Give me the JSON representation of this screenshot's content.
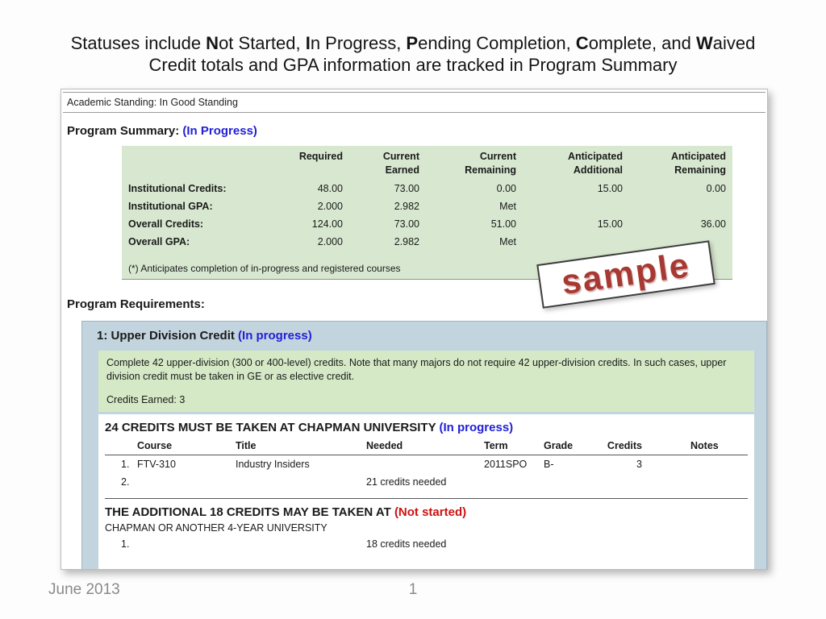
{
  "colors": {
    "status_blue": "#2121d6",
    "status_red": "#cc1111",
    "summary_green_bg": "#d8e8d0",
    "description_green_bg": "#d5e9c6",
    "requirement_panel_bg": "#c2d4de",
    "stamp_red": "#a83832"
  },
  "title": {
    "s1": "Statuses include ",
    "b1": "N",
    "s2": "ot Started, ",
    "b2": "I",
    "s3": "n Progress, ",
    "b3": "P",
    "s4": "ending Completion, ",
    "b4": "C",
    "s5": "omplete, and ",
    "b5": "W",
    "s6": "aived",
    "line2": "Credit totals and GPA information are tracked in Program Summary"
  },
  "footer": {
    "date": "June 2013",
    "page": "1"
  },
  "audit": {
    "academic_standing": "Academic Standing: In Good Standing",
    "program_summary_label": "Program Summary:",
    "program_summary_status": "(In Progress)",
    "summary_table": {
      "headers": [
        "Required",
        "Current\nEarned",
        "Current\nRemaining",
        "Anticipated\nAdditional",
        "Anticipated\nRemaining"
      ],
      "rows": [
        {
          "label": "Institutional Credits:",
          "v1": "48.00",
          "v2": "73.00",
          "v3": "0.00",
          "v4": "15.00",
          "v5": "0.00"
        },
        {
          "label": "Institutional GPA:",
          "v1": "2.000",
          "v2": "2.982",
          "v3": "Met",
          "v4": "",
          "v5": ""
        },
        {
          "label": "Overall Credits:",
          "v1": "124.00",
          "v2": "73.00",
          "v3": "51.00",
          "v4": "15.00",
          "v5": "36.00"
        },
        {
          "label": "Overall GPA:",
          "v1": "2.000",
          "v2": "2.982",
          "v3": "Met",
          "v4": "",
          "v5": ""
        }
      ],
      "footnote": "(*) Anticipates completion of in-progress and registered courses"
    },
    "watermark": "sample",
    "program_requirements_label": "Program Requirements:",
    "requirement": {
      "heading": "1: Upper Division Credit",
      "heading_status": "(In progress)",
      "description": "Complete 42 upper-division (300 or 400-level) credits. Note that many majors do not require 42 upper-division credits. In such cases, upper division credit must be taken in GE or as elective credit.",
      "credits_earned": "Credits Earned: 3",
      "chapman": {
        "title": "24 CREDITS MUST BE TAKEN AT CHAPMAN UNIVERSITY",
        "status": "(In progress)",
        "headers": {
          "course": "Course",
          "title": "Title",
          "needed": "Needed",
          "term": "Term",
          "grade": "Grade",
          "credits": "Credits",
          "notes": "Notes"
        },
        "rows": [
          {
            "num": "1.",
            "course": "FTV-310",
            "title": "Industry Insiders",
            "needed": "",
            "term": "2011SPO",
            "grade": "B-",
            "credits": "3",
            "notes": ""
          },
          {
            "num": "2.",
            "course": "",
            "title": "",
            "needed": "21 credits needed",
            "term": "",
            "grade": "",
            "credits": "",
            "notes": ""
          }
        ]
      },
      "additional": {
        "title": "THE ADDITIONAL 18 CREDITS MAY BE TAKEN AT",
        "status": "(Not started)",
        "subtitle": "CHAPMAN OR ANOTHER 4-YEAR UNIVERSITY",
        "rows": [
          {
            "num": "1.",
            "needed": "18 credits needed"
          }
        ]
      }
    }
  }
}
